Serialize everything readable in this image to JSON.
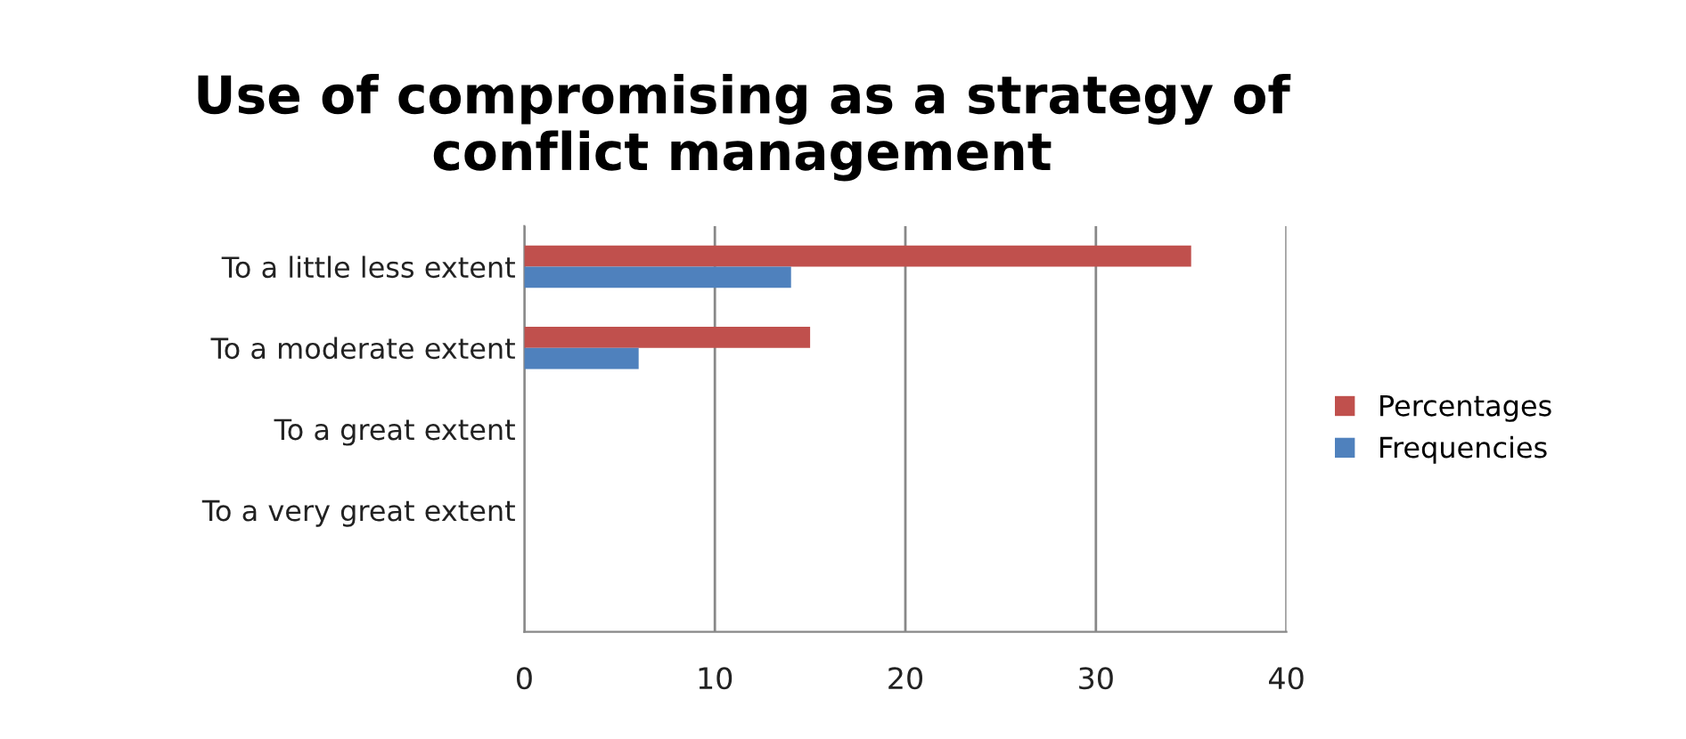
{
  "chart_data": {
    "type": "bar",
    "orientation": "horizontal",
    "title": "Use of compromising as a strategy of\nconflict management",
    "categories": [
      "To a little less extent",
      "To a moderate extent",
      "To a great extent",
      "To a very great extent",
      null
    ],
    "series": [
      {
        "name": "Percentages",
        "color": "#c0504d",
        "values": [
          35,
          15,
          0,
          0,
          null
        ]
      },
      {
        "name": "Frequencies",
        "color": "#4f81bd",
        "values": [
          14,
          6,
          0,
          0,
          null
        ]
      }
    ],
    "xlim": [
      0,
      40
    ],
    "xticks": [
      0,
      10,
      20,
      30,
      40
    ],
    "grid": "x",
    "legend": "right"
  }
}
